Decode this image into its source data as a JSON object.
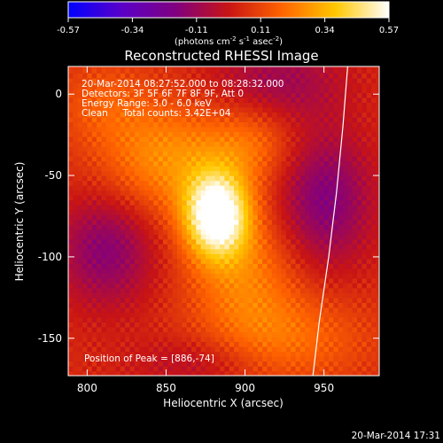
{
  "chart_data": {
    "type": "heatmap",
    "title": "Reconstructed RHESSI Image",
    "xlabel": "Heliocentric X (arcsec)",
    "ylabel": "Heliocentric Y (arcsec)",
    "xlim": [
      788,
      985
    ],
    "ylim": [
      -173,
      17
    ],
    "x_ticks": [
      800,
      850,
      900,
      950
    ],
    "y_ticks": [
      0,
      -50,
      -100,
      -150
    ],
    "colorbar": {
      "range": [
        -0.57,
        0.57
      ],
      "ticks": [
        "-0.57",
        "-0.34",
        "-0.11",
        "0.11",
        "0.34",
        "0.57"
      ],
      "label_pre": "(photons cm",
      "sup1": "-2",
      "label_mid1": " s",
      "sup2": "-1",
      "label_mid2": " asec",
      "sup3": "-2",
      "label_post": ")",
      "colors": [
        "#0000ff",
        "#5a00c8",
        "#800080",
        "#c81414",
        "#ff6400",
        "#ffc800",
        "#ffffff"
      ]
    },
    "annotations": [
      "20-Mar-2014 08:27:52.000 to 08:28:32.000",
      "Detectors: 3F 5F 6F 7F 8F 9F, Att 0",
      "Energy Range: 3.0 - 6.0 keV",
      "Clean     Total counts: 3.42E+04"
    ],
    "peak_label": "Position of Peak = [886,-74]",
    "peak": [
      886,
      -74
    ],
    "sources": [
      {
        "x": 882,
        "y": -74,
        "sx": 14,
        "sy": 18,
        "amp": 0.57
      },
      {
        "x": 850,
        "y": -40,
        "sx": 30,
        "sy": 25,
        "amp": 0.22
      },
      {
        "x": 900,
        "y": -110,
        "sx": 25,
        "sy": 30,
        "amp": 0.18
      },
      {
        "x": 905,
        "y": -30,
        "sx": 20,
        "sy": 18,
        "amp": 0.14
      },
      {
        "x": 930,
        "y": -150,
        "sx": 35,
        "sy": 20,
        "amp": 0.14
      },
      {
        "x": 810,
        "y": -5,
        "sx": 20,
        "sy": 18,
        "amp": 0.1
      }
    ],
    "holes": [
      {
        "x": 812,
        "y": -95,
        "sx": 22,
        "sy": 25,
        "amp": -0.22
      },
      {
        "x": 950,
        "y": -65,
        "sx": 22,
        "sy": 30,
        "amp": -0.24
      },
      {
        "x": 920,
        "y": 8,
        "sx": 30,
        "sy": 18,
        "amp": -0.16
      },
      {
        "x": 870,
        "y": -165,
        "sx": 30,
        "sy": 12,
        "amp": -0.1
      }
    ],
    "limb_curve": [
      [
        965,
        17
      ],
      [
        962,
        -20
      ],
      [
        958,
        -60
      ],
      [
        953,
        -100
      ],
      [
        947,
        -140
      ],
      [
        943,
        -173
      ]
    ]
  },
  "footer": {
    "timestamp": "20-Mar-2014 17:31"
  }
}
